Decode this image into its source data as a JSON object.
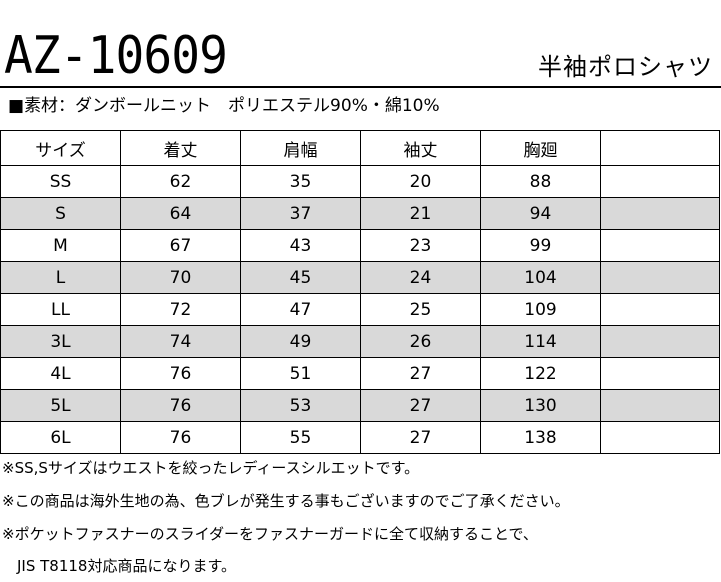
{
  "header": {
    "model_number": "AZ-10609",
    "product_name": "半袖ポロシャツ"
  },
  "material": {
    "marker": "■",
    "text": "素材：ダンボールニット　ポリエステル90%・綿10%"
  },
  "size_table": {
    "columns": [
      "サイズ",
      "着丈",
      "肩幅",
      "袖丈",
      "胸廻",
      ""
    ],
    "rows": [
      {
        "size": "SS",
        "length": "62",
        "shoulder": "35",
        "sleeve": "20",
        "chest": "88",
        "extra": "",
        "shaded": false
      },
      {
        "size": "S",
        "length": "64",
        "shoulder": "37",
        "sleeve": "21",
        "chest": "94",
        "extra": "",
        "shaded": true
      },
      {
        "size": "M",
        "length": "67",
        "shoulder": "43",
        "sleeve": "23",
        "chest": "99",
        "extra": "",
        "shaded": false
      },
      {
        "size": "L",
        "length": "70",
        "shoulder": "45",
        "sleeve": "24",
        "chest": "104",
        "extra": "",
        "shaded": true
      },
      {
        "size": "LL",
        "length": "72",
        "shoulder": "47",
        "sleeve": "25",
        "chest": "109",
        "extra": "",
        "shaded": false
      },
      {
        "size": "3L",
        "length": "74",
        "shoulder": "49",
        "sleeve": "26",
        "chest": "114",
        "extra": "",
        "shaded": true
      },
      {
        "size": "4L",
        "length": "76",
        "shoulder": "51",
        "sleeve": "27",
        "chest": "122",
        "extra": "",
        "shaded": false
      },
      {
        "size": "5L",
        "length": "76",
        "shoulder": "53",
        "sleeve": "27",
        "chest": "130",
        "extra": "",
        "shaded": true
      },
      {
        "size": "6L",
        "length": "76",
        "shoulder": "55",
        "sleeve": "27",
        "chest": "138",
        "extra": "",
        "shaded": false
      }
    ],
    "shade_color": "#d9d9d9"
  },
  "notes": [
    "※SS,Sサイズはウエストを絞ったレディースシルエットです。",
    "※この商品は海外生地の為、色ブレが発生する事もございますのでご了承ください。",
    "※ポケットファスナーのスライダーをファスナーガードに全て収納することで、",
    "　JIS T8118対応商品になります。"
  ]
}
